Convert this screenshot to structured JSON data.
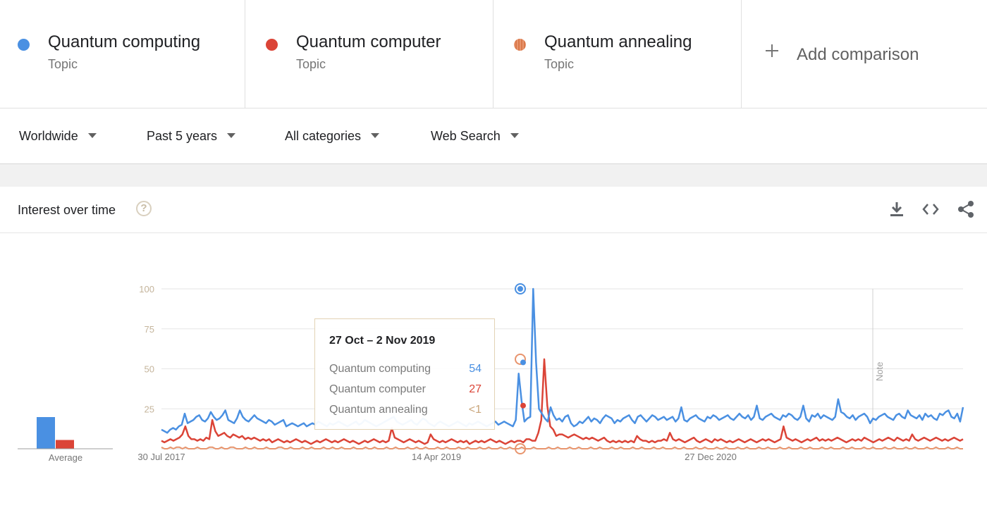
{
  "terms": [
    {
      "name": "Quantum computing",
      "type": "Topic",
      "color": "#4a90e2"
    },
    {
      "name": "Quantum computer",
      "type": "Topic",
      "color": "#db4437"
    },
    {
      "name": "Quantum annealing",
      "type": "Topic",
      "color": "#e8956e"
    }
  ],
  "add_comparison_label": "Add comparison",
  "filters": [
    {
      "label": "Worldwide"
    },
    {
      "label": "Past 5 years"
    },
    {
      "label": "All categories"
    },
    {
      "label": "Web Search"
    }
  ],
  "card": {
    "title": "Interest over time",
    "help_icon": "question-mark-icon",
    "tools": [
      "download-icon",
      "embed-code-icon",
      "share-icon"
    ]
  },
  "tooltip": {
    "date": "27 Oct – 2 Nov 2019",
    "rows": [
      {
        "term": "Quantum computing",
        "value": "54"
      },
      {
        "term": "Quantum computer",
        "value": "27"
      },
      {
        "term": "Quantum annealing",
        "value": "<1"
      }
    ]
  },
  "chart_data": {
    "type": "line",
    "x_tick_labels": [
      "30 Jul 2017",
      "14 Apr 2019",
      "27 Dec 2020"
    ],
    "y_tick_labels": [
      "100",
      "75",
      "50",
      "25"
    ],
    "ylim": [
      0,
      100
    ],
    "grid": true,
    "note_marker": "Note",
    "average_label": "Average",
    "averages": {
      "Quantum computing": 18,
      "Quantum computer": 5,
      "Quantum annealing": 0
    },
    "series": [
      {
        "name": "Quantum computing",
        "color": "#4a90e2",
        "values": [
          12,
          11,
          10,
          12,
          13,
          12,
          14,
          15,
          22,
          16,
          17,
          18,
          20,
          21,
          18,
          17,
          19,
          23,
          20,
          18,
          19,
          21,
          24,
          18,
          17,
          16,
          19,
          24,
          20,
          18,
          17,
          19,
          21,
          19,
          18,
          17,
          16,
          18,
          17,
          15,
          16,
          17,
          18,
          14,
          15,
          16,
          15,
          14,
          15,
          16,
          14,
          15,
          16,
          15,
          17,
          16,
          15,
          14,
          16,
          15,
          16,
          17,
          16,
          15,
          14,
          15,
          16,
          17,
          15,
          16,
          18,
          17,
          16,
          15,
          14,
          15,
          16,
          17,
          18,
          19,
          20,
          17,
          16,
          15,
          16,
          17,
          18,
          16,
          15,
          17,
          19,
          18,
          16,
          15,
          14,
          16,
          17,
          16,
          15,
          14,
          15,
          16,
          17,
          16,
          15,
          14,
          16,
          15,
          16,
          17,
          16,
          15,
          14,
          15,
          16,
          17,
          15,
          16,
          17,
          16,
          15,
          14,
          18,
          47,
          30,
          17,
          19,
          20,
          100,
          54,
          25,
          22,
          19,
          17,
          26,
          21,
          18,
          19,
          17,
          20,
          21,
          16,
          14,
          15,
          17,
          16,
          18,
          20,
          17,
          19,
          18,
          16,
          19,
          21,
          20,
          19,
          16,
          18,
          17,
          19,
          20,
          21,
          18,
          16,
          20,
          21,
          19,
          17,
          19,
          21,
          20,
          18,
          19,
          20,
          18,
          19,
          20,
          17,
          19,
          26,
          18,
          17,
          19,
          20,
          21,
          19,
          18,
          17,
          20,
          19,
          21,
          20,
          18,
          19,
          20,
          21,
          19,
          18,
          20,
          22,
          20,
          19,
          21,
          18,
          20,
          27,
          19,
          18,
          20,
          21,
          22,
          20,
          19,
          18,
          21,
          20,
          22,
          21,
          19,
          18,
          20,
          27,
          19,
          17,
          21,
          20,
          22,
          19,
          21,
          20,
          19,
          18,
          20,
          31,
          23,
          22,
          20,
          19,
          21,
          18,
          20,
          21,
          22,
          20,
          16,
          19,
          18,
          20,
          21,
          22,
          20,
          19,
          18,
          21,
          22,
          20,
          19,
          24,
          21,
          20,
          19,
          21,
          18,
          22,
          20,
          21,
          19,
          18,
          22,
          21,
          23,
          24,
          20,
          19,
          22,
          17,
          26
        ]
      },
      {
        "name": "Quantum computer",
        "color": "#db4437",
        "values": [
          5,
          4,
          5,
          6,
          5,
          6,
          7,
          9,
          14,
          8,
          6,
          6,
          5,
          6,
          5,
          7,
          6,
          18,
          11,
          8,
          9,
          10,
          8,
          7,
          9,
          8,
          7,
          8,
          6,
          7,
          6,
          7,
          6,
          5,
          6,
          5,
          6,
          4,
          5,
          6,
          5,
          4,
          5,
          4,
          5,
          6,
          5,
          4,
          5,
          4,
          3,
          4,
          5,
          4,
          5,
          6,
          5,
          4,
          5,
          4,
          5,
          6,
          5,
          4,
          5,
          4,
          3,
          4,
          5,
          4,
          5,
          6,
          5,
          4,
          5,
          4,
          5,
          13,
          7,
          6,
          5,
          4,
          5,
          6,
          5,
          4,
          5,
          4,
          3,
          4,
          9,
          6,
          5,
          4,
          5,
          4,
          5,
          6,
          5,
          4,
          5,
          4,
          5,
          3,
          4,
          5,
          4,
          5,
          4,
          5,
          6,
          5,
          4,
          5,
          4,
          3,
          4,
          5,
          4,
          5,
          5,
          4,
          6,
          6,
          5,
          5,
          10,
          18,
          56,
          27,
          14,
          12,
          8,
          9,
          9,
          8,
          7,
          8,
          9,
          8,
          7,
          6,
          7,
          6,
          7,
          6,
          5,
          6,
          7,
          5,
          4,
          5,
          4,
          5,
          4,
          5,
          4,
          5,
          4,
          8,
          6,
          5,
          5,
          4,
          5,
          4,
          5,
          5,
          6,
          5,
          10,
          6,
          5,
          6,
          5,
          4,
          5,
          6,
          7,
          5,
          4,
          5,
          6,
          5,
          4,
          6,
          5,
          6,
          5,
          4,
          5,
          4,
          5,
          6,
          5,
          4,
          5,
          6,
          5,
          4,
          5,
          6,
          5,
          6,
          5,
          4,
          5,
          6,
          14,
          7,
          6,
          5,
          6,
          5,
          4,
          5,
          6,
          5,
          6,
          7,
          5,
          6,
          5,
          6,
          5,
          6,
          7,
          6,
          5,
          4,
          5,
          6,
          5,
          6,
          5,
          7,
          6,
          5,
          4,
          5,
          6,
          5,
          6,
          7,
          6,
          5,
          7,
          6,
          5,
          6,
          5,
          9,
          6,
          5,
          6,
          7,
          6,
          5,
          6,
          7,
          6,
          5,
          6,
          5,
          6,
          7,
          6,
          5,
          6
        ]
      },
      {
        "name": "Quantum annealing",
        "color": "#e8956e",
        "values": [
          1,
          0,
          0,
          1,
          0,
          1,
          1,
          0,
          1,
          0,
          0,
          0,
          1,
          0,
          0,
          0,
          1,
          1,
          0,
          0,
          1,
          0,
          0,
          1,
          1,
          0,
          0,
          0,
          1,
          0,
          0,
          1,
          0,
          0,
          0,
          1,
          0,
          0,
          0,
          1,
          1,
          0,
          0,
          1,
          0,
          0,
          0,
          1,
          0,
          0,
          1,
          0,
          0,
          0,
          1,
          0,
          0,
          1,
          0,
          0,
          1,
          0,
          0,
          0,
          1,
          0,
          0,
          0,
          1,
          0,
          0,
          1,
          0,
          0,
          0,
          1,
          0,
          0,
          1,
          0,
          0,
          0,
          1,
          0,
          0,
          1,
          0,
          0,
          1,
          0,
          0,
          0,
          1,
          0,
          0,
          1,
          0,
          0,
          0,
          1,
          0,
          0,
          1,
          0,
          0,
          0,
          1,
          0,
          0,
          1,
          0,
          0,
          0,
          1,
          0,
          0,
          1,
          0,
          0,
          0,
          1,
          0,
          0,
          0,
          1,
          0,
          0,
          0,
          0,
          1,
          0,
          0,
          1,
          0,
          0,
          0,
          1,
          0,
          0,
          1,
          0,
          0,
          0,
          1,
          0,
          0,
          1,
          0,
          0,
          0,
          1,
          0,
          0,
          1,
          0,
          0,
          0,
          1,
          0,
          0,
          1,
          0,
          0,
          0,
          1,
          0,
          0,
          1,
          0,
          0,
          0,
          1,
          0,
          0,
          1,
          0,
          0,
          0,
          1,
          0,
          0,
          1,
          0,
          0,
          0,
          1,
          0,
          0,
          1,
          0,
          0,
          0,
          1,
          0,
          0,
          1,
          0,
          0,
          0,
          1,
          0,
          0,
          1,
          0,
          0,
          0,
          1,
          0,
          0,
          1,
          0,
          0,
          0,
          1,
          0,
          0,
          1,
          0,
          0,
          0,
          1,
          0,
          0,
          1,
          0,
          0,
          0,
          1,
          0,
          0,
          1,
          0,
          0,
          0,
          1,
          0,
          0,
          1,
          0,
          0,
          0,
          1,
          0,
          0,
          1,
          0,
          0,
          0,
          1,
          0,
          0,
          1,
          0,
          0,
          0,
          1,
          0,
          0,
          1,
          0,
          0,
          0,
          1,
          0,
          0,
          1,
          0,
          0
        ]
      }
    ]
  }
}
